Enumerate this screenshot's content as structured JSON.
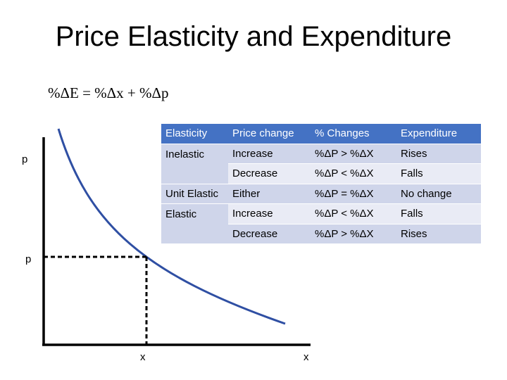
{
  "title": "Price Elasticity and Expenditure",
  "formula": "%ΔE = %Δx + %Δp",
  "diagram": {
    "y_label_top": "p",
    "y_label_point": "p",
    "x_label_point": "x",
    "x_label_end": "x"
  },
  "table": {
    "header": [
      "Elasticity",
      "Price change",
      "% Changes",
      "Expenditure"
    ],
    "rows": [
      [
        "Inelastic",
        "Increase",
        "%ΔP > %ΔX",
        "Rises"
      ],
      [
        null,
        "Decrease",
        "%ΔP < %ΔX",
        "Falls"
      ],
      [
        "Unit Elastic",
        "Either",
        "%ΔP = %ΔX",
        "No change"
      ],
      [
        "Elastic",
        "Increase",
        "%ΔP < %ΔX",
        "Falls"
      ],
      [
        null,
        "Decrease",
        "%ΔP > %ΔX",
        "Rises"
      ]
    ]
  }
}
